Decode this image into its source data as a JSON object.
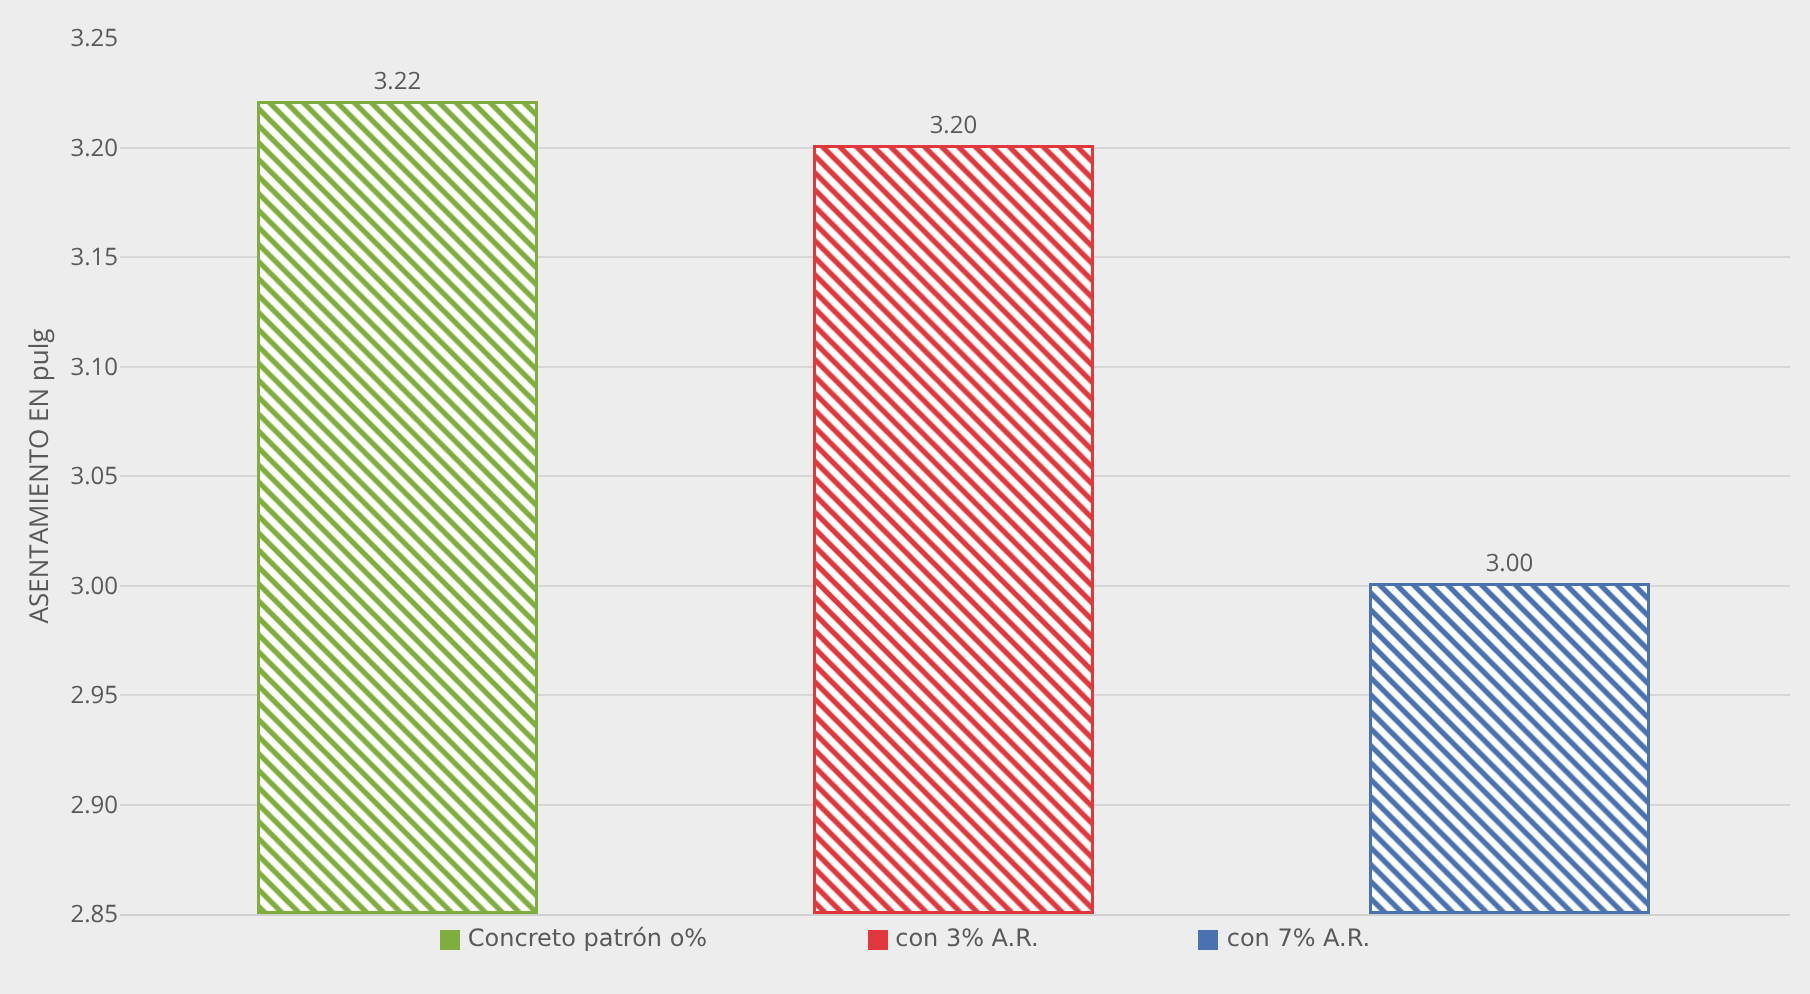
{
  "chart_data": {
    "type": "bar",
    "ylabel": "ASENTAMIENTO EN pulg",
    "categories": [
      null,
      null,
      null
    ],
    "series": [
      {
        "name": "Concreto patrón o%",
        "color": "#7fae3e",
        "values": [
          3.22,
          null,
          null
        ],
        "value_labels": [
          "3.22",
          null,
          null
        ]
      },
      {
        "name": "con 3% A.R.",
        "color": "#e0383c",
        "values": [
          null,
          3.2,
          null
        ],
        "value_labels": [
          null,
          "3.20",
          null
        ]
      },
      {
        "name": "con 7% A.R.",
        "color": "#4a72b0",
        "values": [
          null,
          null,
          3.0
        ],
        "value_labels": [
          null,
          null,
          "3.00"
        ]
      }
    ],
    "ylim": [
      2.85,
      3.25
    ],
    "yticks": [
      {
        "value": 2.85,
        "label": "2.85"
      },
      {
        "value": 2.9,
        "label": "2.90"
      },
      {
        "value": 2.95,
        "label": "2.95"
      },
      {
        "value": 3.0,
        "label": "3.00"
      },
      {
        "value": 3.05,
        "label": "3.05"
      },
      {
        "value": 3.1,
        "label": "3.10"
      },
      {
        "value": 3.15,
        "label": "3.15"
      },
      {
        "value": 3.2,
        "label": "3.20"
      },
      {
        "value": 3.25,
        "label": "3.25"
      }
    ],
    "grid": "y",
    "legend": "bottom"
  }
}
